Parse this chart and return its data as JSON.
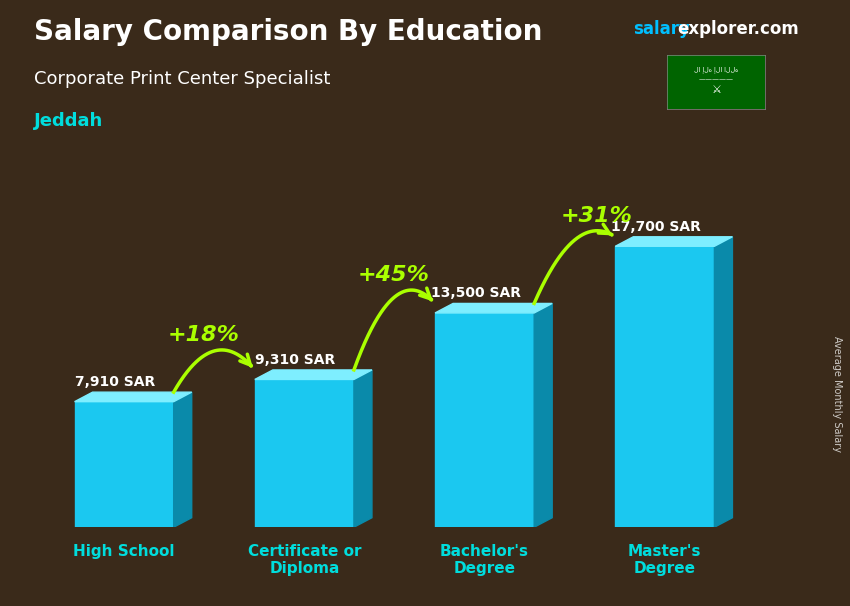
{
  "title": "Salary Comparison By Education",
  "subtitle": "Corporate Print Center Specialist",
  "city": "Jeddah",
  "ylabel": "Average Monthly Salary",
  "categories": [
    "High School",
    "Certificate or\nDiploma",
    "Bachelor's\nDegree",
    "Master's\nDegree"
  ],
  "values": [
    7910,
    9310,
    13500,
    17700
  ],
  "value_labels": [
    "7,910 SAR",
    "9,310 SAR",
    "13,500 SAR",
    "17,700 SAR"
  ],
  "pct_labels": [
    "+18%",
    "+45%",
    "+31%"
  ],
  "bar_color_face": "#1BC8F0",
  "bar_color_top": "#7EEEFF",
  "bar_color_side": "#0A8AAA",
  "bg_color": "#3a2a1a",
  "title_color": "#FFFFFF",
  "subtitle_color": "#FFFFFF",
  "city_color": "#00DDDD",
  "value_color": "#FFFFFF",
  "pct_color": "#AAFF00",
  "ylabel_color": "#FFFFFF",
  "figsize": [
    8.5,
    6.06
  ],
  "dpi": 100,
  "ylim": [
    0,
    21000
  ],
  "bar_width": 0.55,
  "bar_spacing": 1.0
}
